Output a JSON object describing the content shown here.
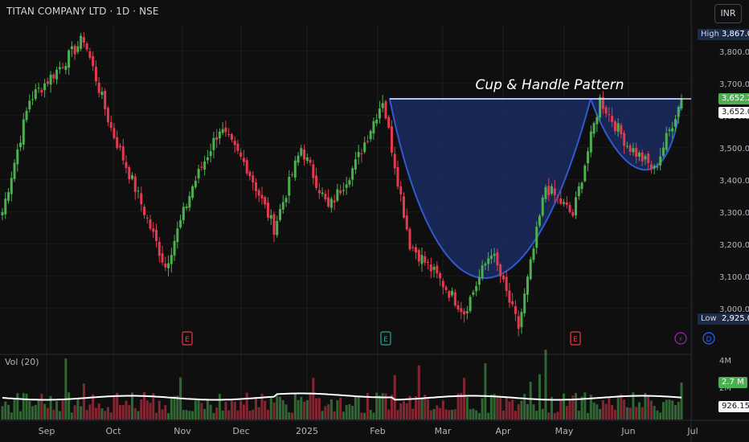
{
  "header": {
    "symbol": "TITAN COMPANY LTD · 1D · NSE",
    "currency_button": "INR",
    "volume_label": "Vol (20)"
  },
  "annotation": {
    "pattern_title": "Cup & Handle Pattern"
  },
  "price_axis": {
    "ticks": [
      "3,800.00",
      "3,700.00",
      "3,600.00",
      "3,500.00",
      "3,400.00",
      "3,300.00",
      "3,200.00",
      "3,100.00",
      "3,000.00"
    ],
    "high_label": "High",
    "high_value": "3,867.00",
    "low_label": "Low",
    "low_value": "2,925.00",
    "last_price": "3,652.20",
    "pattern_level": "3,652.00"
  },
  "volume_axis": {
    "ticks": [
      "4M",
      "2M"
    ],
    "last_volume": "2.7 M",
    "avg_volume": "926.15K"
  },
  "time_axis": {
    "labels": [
      "Sep",
      "Oct",
      "Nov",
      "Dec",
      "2025",
      "Feb",
      "Mar",
      "Apr",
      "May",
      "Jun",
      "Jul"
    ]
  },
  "events": [
    {
      "type": "earnings",
      "glyph": "E",
      "date": "Nov",
      "color": "#f23645"
    },
    {
      "type": "earnings",
      "glyph": "E",
      "date": "Feb",
      "color": "#22ab94"
    },
    {
      "type": "earnings",
      "glyph": "E",
      "date": "May",
      "color": "#f23645"
    },
    {
      "type": "split",
      "glyph": "⚡",
      "date": "Jun",
      "color": "#9c27b0"
    },
    {
      "type": "dividend",
      "glyph": "D",
      "date": "Jun",
      "color": "#2962ff"
    }
  ],
  "colors": {
    "up": "#4caf50",
    "down": "#e53950",
    "cup_fill": "#1c2f6b",
    "cup_stroke": "#2f5bd1",
    "volume_ma": "#ffffff",
    "background": "#0f0f0f"
  },
  "chart_data": {
    "type": "candlestick",
    "title": "TITAN COMPANY LTD · 1D · NSE",
    "y_axis": {
      "min": 2900,
      "max": 3880,
      "unit": "INR"
    },
    "price_path": [
      {
        "date": "Aug",
        "close": 3300
      },
      {
        "date": "Sep",
        "close": 3650
      },
      {
        "date": "Sep",
        "close": 3740
      },
      {
        "date": "Oct",
        "close": 3840
      },
      {
        "date": "Oct",
        "close": 3560
      },
      {
        "date": "Nov",
        "close": 3350
      },
      {
        "date": "Nov",
        "close": 3130
      },
      {
        "date": "Dec",
        "close": 3380
      },
      {
        "date": "Dec",
        "close": 3560
      },
      {
        "date": "Dec",
        "close": 3440
      },
      {
        "date": "Dec",
        "close": 3250
      },
      {
        "date": "2025",
        "close": 3500
      },
      {
        "date": "2025",
        "close": 3310
      },
      {
        "date": "Feb",
        "close": 3450
      },
      {
        "date": "Feb",
        "close": 3650
      },
      {
        "date": "Feb",
        "close": 3200
      },
      {
        "date": "Mar",
        "close": 3100
      },
      {
        "date": "Mar",
        "close": 2990
      },
      {
        "date": "Apr",
        "close": 3180
      },
      {
        "date": "Apr",
        "close": 2940
      },
      {
        "date": "Apr",
        "close": 3380
      },
      {
        "date": "May",
        "close": 3290
      },
      {
        "date": "May",
        "close": 3650
      },
      {
        "date": "Jun",
        "close": 3510
      },
      {
        "date": "Jun",
        "close": 3430
      },
      {
        "date": "Jul",
        "close": 3652.2
      }
    ],
    "volume_average": "926.15K",
    "last_volume": "2.7 M",
    "annotations": [
      {
        "label": "Cup & Handle Pattern",
        "resistance": 3652
      }
    ]
  }
}
